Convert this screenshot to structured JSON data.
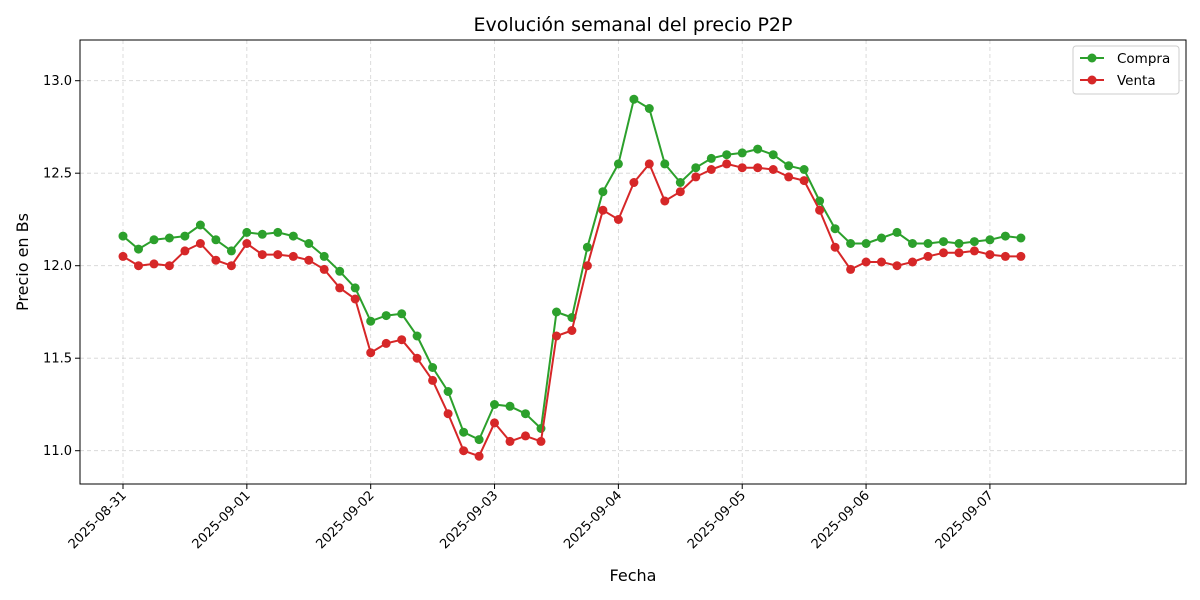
{
  "chart_data": {
    "type": "line",
    "title": "Evolución semanal del precio P2P",
    "xlabel": "Fecha",
    "ylabel": "Precio en Bs",
    "x_type": "date",
    "xlim": [
      "2025-08-30T15:40",
      "2025-09-08T14:00"
    ],
    "ylim": [
      10.82,
      13.22
    ],
    "x_ticks": [
      "2025-08-31",
      "2025-09-01",
      "2025-09-02",
      "2025-09-03",
      "2025-09-04",
      "2025-09-05",
      "2025-09-06",
      "2025-09-07"
    ],
    "y_ticks": [
      "11.0",
      "11.5",
      "12.0",
      "12.5",
      "13.0"
    ],
    "grid": true,
    "legend_position": "top-right",
    "series": [
      {
        "name": "Compra",
        "color": "#2ca02c",
        "marker": "circle",
        "points": [
          [
            "2025-08-31T00:00",
            12.16
          ],
          [
            "2025-08-31T03:00",
            12.09
          ],
          [
            "2025-08-31T06:00",
            12.14
          ],
          [
            "2025-08-31T09:00",
            12.15
          ],
          [
            "2025-08-31T12:00",
            12.16
          ],
          [
            "2025-08-31T15:00",
            12.22
          ],
          [
            "2025-08-31T18:00",
            12.14
          ],
          [
            "2025-08-31T21:00",
            12.08
          ],
          [
            "2025-09-01T00:00",
            12.18
          ],
          [
            "2025-09-01T03:00",
            12.17
          ],
          [
            "2025-09-01T06:00",
            12.18
          ],
          [
            "2025-09-01T09:00",
            12.16
          ],
          [
            "2025-09-01T12:00",
            12.12
          ],
          [
            "2025-09-01T15:00",
            12.05
          ],
          [
            "2025-09-01T18:00",
            11.97
          ],
          [
            "2025-09-01T21:00",
            11.88
          ],
          [
            "2025-09-02T00:00",
            11.7
          ],
          [
            "2025-09-02T03:00",
            11.73
          ],
          [
            "2025-09-02T06:00",
            11.74
          ],
          [
            "2025-09-02T09:00",
            11.62
          ],
          [
            "2025-09-02T12:00",
            11.45
          ],
          [
            "2025-09-02T15:00",
            11.32
          ],
          [
            "2025-09-02T18:00",
            11.1
          ],
          [
            "2025-09-02T21:00",
            11.06
          ],
          [
            "2025-09-03T00:00",
            11.25
          ],
          [
            "2025-09-03T03:00",
            11.24
          ],
          [
            "2025-09-03T06:00",
            11.2
          ],
          [
            "2025-09-03T09:00",
            11.12
          ],
          [
            "2025-09-03T12:00",
            11.75
          ],
          [
            "2025-09-03T15:00",
            11.72
          ],
          [
            "2025-09-03T18:00",
            12.1
          ],
          [
            "2025-09-03T21:00",
            12.4
          ],
          [
            "2025-09-04T00:00",
            12.55
          ],
          [
            "2025-09-04T03:00",
            12.9
          ],
          [
            "2025-09-04T06:00",
            12.85
          ],
          [
            "2025-09-04T09:00",
            12.55
          ],
          [
            "2025-09-04T12:00",
            12.45
          ],
          [
            "2025-09-04T15:00",
            12.53
          ],
          [
            "2025-09-04T18:00",
            12.58
          ],
          [
            "2025-09-04T21:00",
            12.6
          ],
          [
            "2025-09-05T00:00",
            12.61
          ],
          [
            "2025-09-05T03:00",
            12.63
          ],
          [
            "2025-09-05T06:00",
            12.6
          ],
          [
            "2025-09-05T09:00",
            12.54
          ],
          [
            "2025-09-05T12:00",
            12.52
          ],
          [
            "2025-09-05T15:00",
            12.35
          ],
          [
            "2025-09-05T18:00",
            12.2
          ],
          [
            "2025-09-05T21:00",
            12.12
          ],
          [
            "2025-09-06T00:00",
            12.12
          ],
          [
            "2025-09-06T03:00",
            12.15
          ],
          [
            "2025-09-06T06:00",
            12.18
          ],
          [
            "2025-09-06T09:00",
            12.12
          ],
          [
            "2025-09-06T12:00",
            12.12
          ],
          [
            "2025-09-06T15:00",
            12.13
          ],
          [
            "2025-09-06T18:00",
            12.12
          ],
          [
            "2025-09-06T21:00",
            12.13
          ],
          [
            "2025-09-07T00:00",
            12.14
          ],
          [
            "2025-09-07T03:00",
            12.16
          ],
          [
            "2025-09-07T06:00",
            12.15
          ]
        ]
      },
      {
        "name": "Venta",
        "color": "#d62728",
        "marker": "circle",
        "points": [
          [
            "2025-08-31T00:00",
            12.05
          ],
          [
            "2025-08-31T03:00",
            12.0
          ],
          [
            "2025-08-31T06:00",
            12.01
          ],
          [
            "2025-08-31T09:00",
            12.0
          ],
          [
            "2025-08-31T12:00",
            12.08
          ],
          [
            "2025-08-31T15:00",
            12.12
          ],
          [
            "2025-08-31T18:00",
            12.03
          ],
          [
            "2025-08-31T21:00",
            12.0
          ],
          [
            "2025-09-01T00:00",
            12.12
          ],
          [
            "2025-09-01T03:00",
            12.06
          ],
          [
            "2025-09-01T06:00",
            12.06
          ],
          [
            "2025-09-01T09:00",
            12.05
          ],
          [
            "2025-09-01T12:00",
            12.03
          ],
          [
            "2025-09-01T15:00",
            11.98
          ],
          [
            "2025-09-01T18:00",
            11.88
          ],
          [
            "2025-09-01T21:00",
            11.82
          ],
          [
            "2025-09-02T00:00",
            11.53
          ],
          [
            "2025-09-02T03:00",
            11.58
          ],
          [
            "2025-09-02T06:00",
            11.6
          ],
          [
            "2025-09-02T09:00",
            11.5
          ],
          [
            "2025-09-02T12:00",
            11.38
          ],
          [
            "2025-09-02T15:00",
            11.2
          ],
          [
            "2025-09-02T18:00",
            11.0
          ],
          [
            "2025-09-02T21:00",
            10.97
          ],
          [
            "2025-09-03T00:00",
            11.15
          ],
          [
            "2025-09-03T03:00",
            11.05
          ],
          [
            "2025-09-03T06:00",
            11.08
          ],
          [
            "2025-09-03T09:00",
            11.05
          ],
          [
            "2025-09-03T12:00",
            11.62
          ],
          [
            "2025-09-03T15:00",
            11.65
          ],
          [
            "2025-09-03T18:00",
            12.0
          ],
          [
            "2025-09-03T21:00",
            12.3
          ],
          [
            "2025-09-04T00:00",
            12.25
          ],
          [
            "2025-09-04T03:00",
            12.45
          ],
          [
            "2025-09-04T06:00",
            12.55
          ],
          [
            "2025-09-04T09:00",
            12.35
          ],
          [
            "2025-09-04T12:00",
            12.4
          ],
          [
            "2025-09-04T15:00",
            12.48
          ],
          [
            "2025-09-04T18:00",
            12.52
          ],
          [
            "2025-09-04T21:00",
            12.55
          ],
          [
            "2025-09-05T00:00",
            12.53
          ],
          [
            "2025-09-05T03:00",
            12.53
          ],
          [
            "2025-09-05T06:00",
            12.52
          ],
          [
            "2025-09-05T09:00",
            12.48
          ],
          [
            "2025-09-05T12:00",
            12.46
          ],
          [
            "2025-09-05T15:00",
            12.3
          ],
          [
            "2025-09-05T18:00",
            12.1
          ],
          [
            "2025-09-05T21:00",
            11.98
          ],
          [
            "2025-09-06T00:00",
            12.02
          ],
          [
            "2025-09-06T03:00",
            12.02
          ],
          [
            "2025-09-06T06:00",
            12.0
          ],
          [
            "2025-09-06T09:00",
            12.02
          ],
          [
            "2025-09-06T12:00",
            12.05
          ],
          [
            "2025-09-06T15:00",
            12.07
          ],
          [
            "2025-09-06T18:00",
            12.07
          ],
          [
            "2025-09-06T21:00",
            12.08
          ],
          [
            "2025-09-07T00:00",
            12.06
          ],
          [
            "2025-09-07T03:00",
            12.05
          ],
          [
            "2025-09-07T06:00",
            12.05
          ]
        ]
      }
    ]
  }
}
